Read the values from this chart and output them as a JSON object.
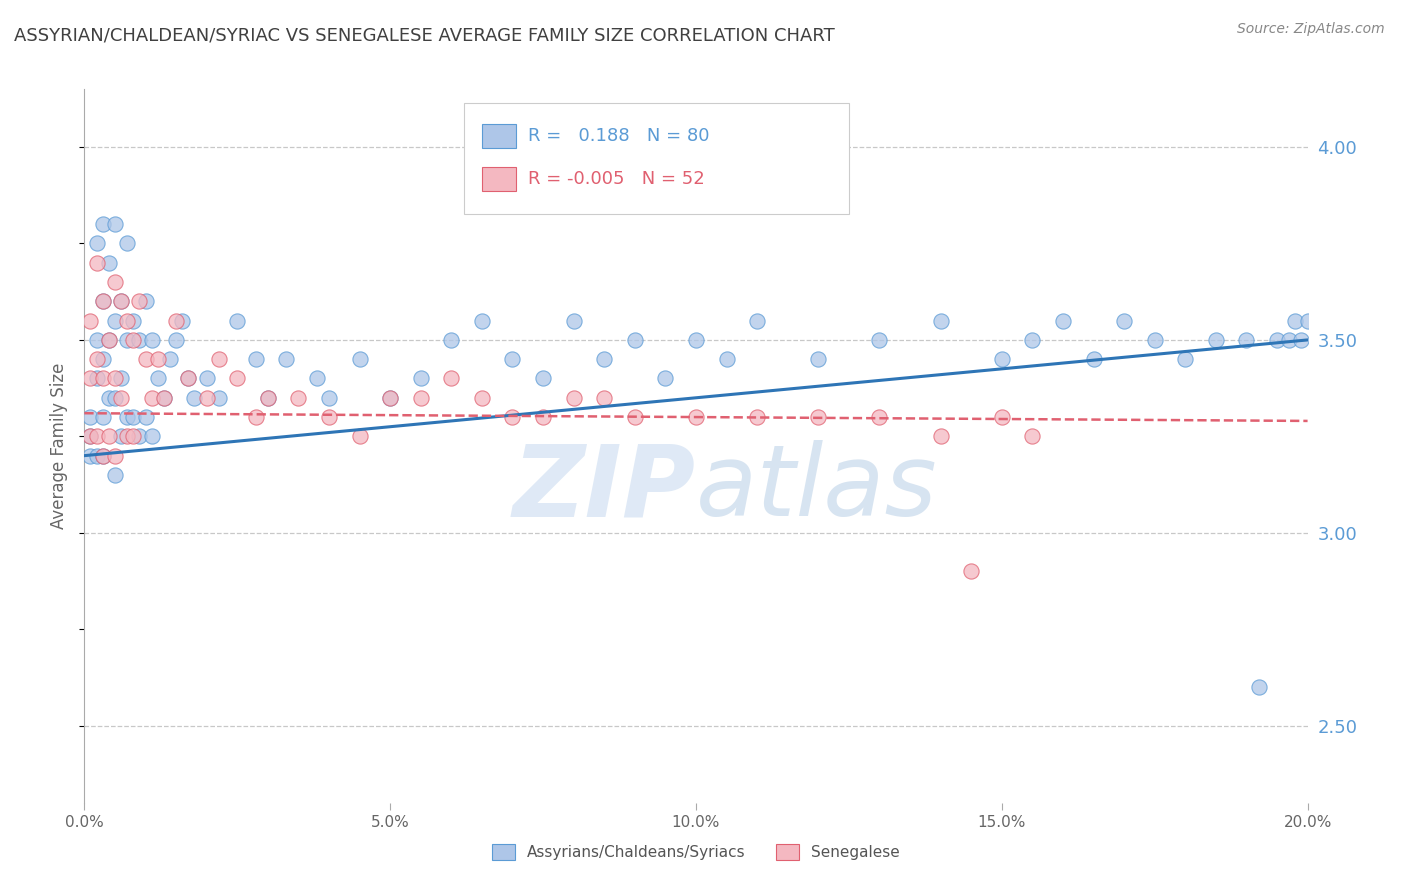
{
  "title": "ASSYRIAN/CHALDEAN/SYRIAC VS SENEGALESE AVERAGE FAMILY SIZE CORRELATION CHART",
  "source": "Source: ZipAtlas.com",
  "ylabel": "Average Family Size",
  "xlim": [
    0.0,
    0.2
  ],
  "ylim": [
    2.3,
    4.15
  ],
  "yticks": [
    2.5,
    3.0,
    3.5,
    4.0
  ],
  "xticks": [
    0.0,
    0.05,
    0.1,
    0.15,
    0.2
  ],
  "xticklabels": [
    "0.0%",
    "5.0%",
    "10.0%",
    "15.0%",
    "20.0%"
  ],
  "background_color": "#ffffff",
  "grid_color": "#c8c8c8",
  "title_color": "#404040",
  "axis_color": "#5b9bd5",
  "watermark": "ZIPAtlas",
  "blue_x": [
    0.001,
    0.001,
    0.001,
    0.002,
    0.002,
    0.002,
    0.002,
    0.003,
    0.003,
    0.003,
    0.003,
    0.003,
    0.004,
    0.004,
    0.004,
    0.005,
    0.005,
    0.005,
    0.005,
    0.006,
    0.006,
    0.006,
    0.007,
    0.007,
    0.007,
    0.008,
    0.008,
    0.009,
    0.009,
    0.01,
    0.01,
    0.011,
    0.011,
    0.012,
    0.013,
    0.014,
    0.015,
    0.016,
    0.017,
    0.018,
    0.02,
    0.022,
    0.025,
    0.028,
    0.03,
    0.033,
    0.038,
    0.04,
    0.045,
    0.05,
    0.055,
    0.06,
    0.065,
    0.07,
    0.075,
    0.08,
    0.085,
    0.09,
    0.095,
    0.1,
    0.105,
    0.11,
    0.12,
    0.13,
    0.14,
    0.15,
    0.155,
    0.16,
    0.165,
    0.17,
    0.175,
    0.18,
    0.185,
    0.19,
    0.192,
    0.195,
    0.197,
    0.198,
    0.199,
    0.2
  ],
  "blue_y": [
    3.25,
    3.2,
    3.3,
    3.5,
    3.75,
    3.2,
    3.4,
    3.8,
    3.6,
    3.45,
    3.3,
    3.2,
    3.7,
    3.5,
    3.35,
    3.8,
    3.55,
    3.35,
    3.15,
    3.6,
    3.4,
    3.25,
    3.75,
    3.5,
    3.3,
    3.55,
    3.3,
    3.5,
    3.25,
    3.6,
    3.3,
    3.5,
    3.25,
    3.4,
    3.35,
    3.45,
    3.5,
    3.55,
    3.4,
    3.35,
    3.4,
    3.35,
    3.55,
    3.45,
    3.35,
    3.45,
    3.4,
    3.35,
    3.45,
    3.35,
    3.4,
    3.5,
    3.55,
    3.45,
    3.4,
    3.55,
    3.45,
    3.5,
    3.4,
    3.5,
    3.45,
    3.55,
    3.45,
    3.5,
    3.55,
    3.45,
    3.5,
    3.55,
    3.45,
    3.55,
    3.5,
    3.45,
    3.5,
    3.5,
    2.6,
    3.5,
    3.5,
    3.55,
    3.5,
    3.55
  ],
  "pink_x": [
    0.001,
    0.001,
    0.001,
    0.002,
    0.002,
    0.002,
    0.003,
    0.003,
    0.003,
    0.004,
    0.004,
    0.005,
    0.005,
    0.005,
    0.006,
    0.006,
    0.007,
    0.007,
    0.008,
    0.008,
    0.009,
    0.01,
    0.011,
    0.012,
    0.013,
    0.015,
    0.017,
    0.02,
    0.022,
    0.025,
    0.028,
    0.03,
    0.035,
    0.04,
    0.045,
    0.05,
    0.055,
    0.06,
    0.065,
    0.07,
    0.075,
    0.08,
    0.085,
    0.09,
    0.1,
    0.11,
    0.12,
    0.13,
    0.14,
    0.145,
    0.15,
    0.155
  ],
  "pink_y": [
    3.55,
    3.4,
    3.25,
    3.7,
    3.45,
    3.25,
    3.6,
    3.4,
    3.2,
    3.5,
    3.25,
    3.65,
    3.4,
    3.2,
    3.6,
    3.35,
    3.55,
    3.25,
    3.5,
    3.25,
    3.6,
    3.45,
    3.35,
    3.45,
    3.35,
    3.55,
    3.4,
    3.35,
    3.45,
    3.4,
    3.3,
    3.35,
    3.35,
    3.3,
    3.25,
    3.35,
    3.35,
    3.4,
    3.35,
    3.3,
    3.3,
    3.35,
    3.35,
    3.3,
    3.3,
    3.3,
    3.3,
    3.3,
    3.25,
    2.9,
    3.3,
    3.25
  ],
  "legend_colors": [
    "#aec6e8",
    "#f4b8c1"
  ],
  "legend_edge_colors": [
    "#5b9bd5",
    "#e06070"
  ],
  "blue_R": 0.188,
  "blue_N": 80,
  "pink_R": -0.005,
  "pink_N": 52,
  "blue_trend_color": "#2e75b6",
  "pink_trend_color": "#e06070"
}
